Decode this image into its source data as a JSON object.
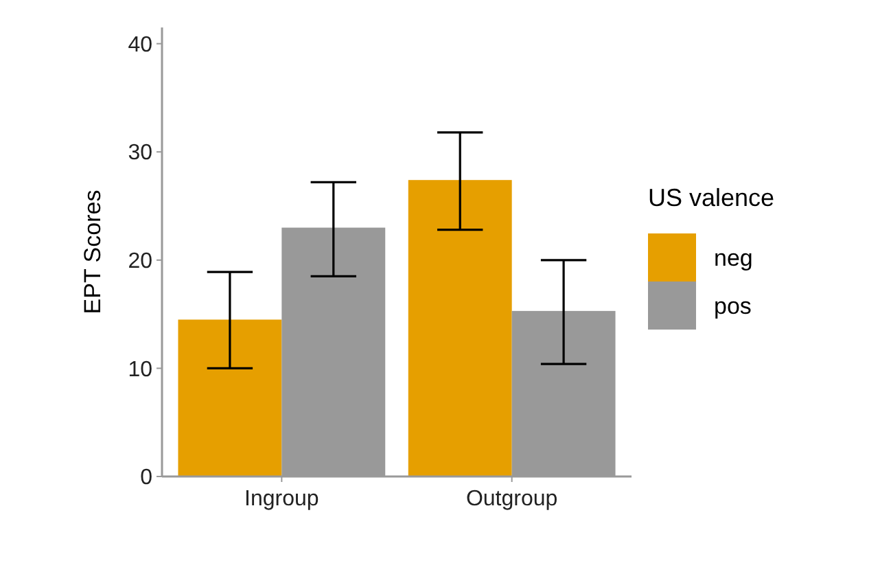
{
  "chart_data": {
    "type": "bar",
    "ylabel": "EPT Scores",
    "legend_title": "US valence",
    "legend": "right",
    "grid": false,
    "categories": [
      "Ingroup",
      "Outgroup"
    ],
    "ylim": [
      0,
      41.5
    ],
    "yticks": [
      0,
      10,
      20,
      30,
      40
    ],
    "series": [
      {
        "name": "neg",
        "color": "#e69f00",
        "values": [
          14.5,
          27.4
        ],
        "errors": [
          [
            10.0,
            18.9
          ],
          [
            22.8,
            31.8
          ]
        ]
      },
      {
        "name": "pos",
        "color": "#999999",
        "values": [
          23.0,
          15.3
        ],
        "errors": [
          [
            18.5,
            27.2
          ],
          [
            10.4,
            20.0
          ]
        ]
      }
    ]
  }
}
